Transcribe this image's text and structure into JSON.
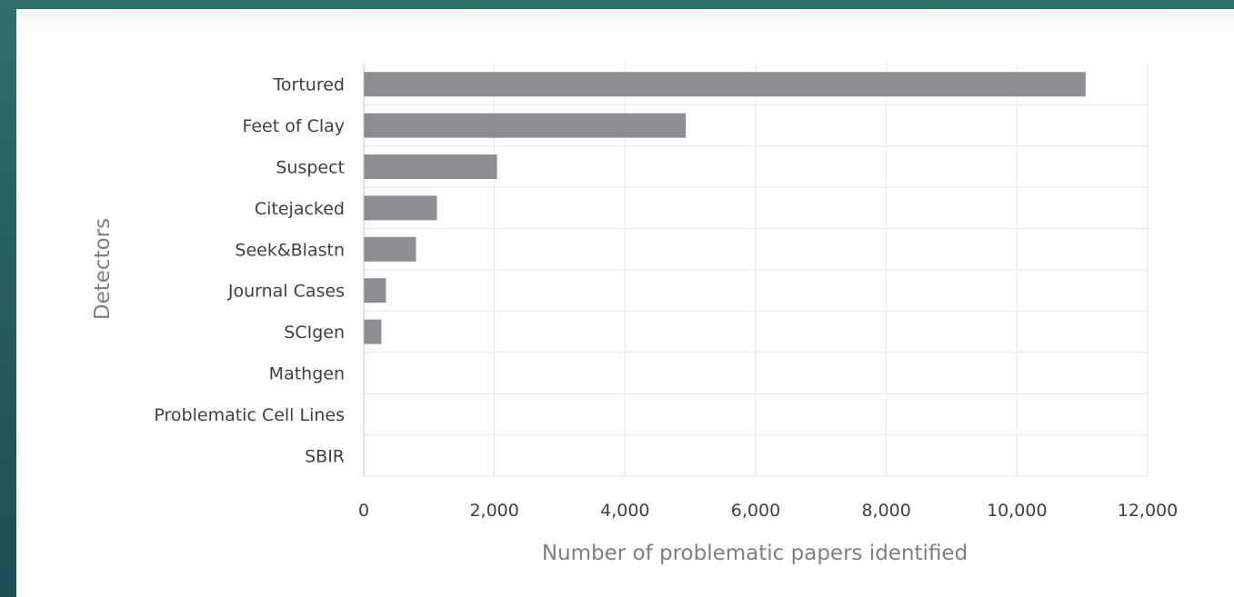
{
  "chart_data": {
    "type": "bar",
    "orientation": "horizontal",
    "categories": [
      "Tortured",
      "Feet of Clay",
      "Suspect",
      "Citejacked",
      "Seek&Blastn",
      "Journal Cases",
      "SCIgen",
      "Mathgen",
      "Problematic Cell Lines",
      "SBIR"
    ],
    "values": [
      11050,
      4930,
      2040,
      1120,
      800,
      340,
      270,
      0,
      0,
      0
    ],
    "xlabel": "Number of problematic papers identified",
    "ylabel": "Detectors",
    "xlim": [
      0,
      12000
    ],
    "xticks": [
      0,
      2000,
      4000,
      6000,
      8000,
      10000,
      12000
    ],
    "xtick_labels": [
      "0",
      "2,000",
      "4,000",
      "6,000",
      "8,000",
      "10,000",
      "12,000"
    ],
    "grid": true,
    "legend": "none",
    "bar_color": "#8e8d92"
  }
}
